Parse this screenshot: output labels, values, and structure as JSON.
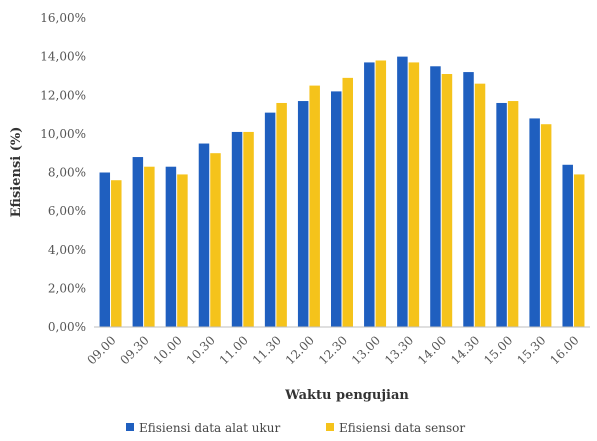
{
  "chart_data": {
    "type": "bar",
    "xlabel": "Waktu pengujian",
    "ylabel": "Efisiensi (%)",
    "ylim": [
      0,
      16
    ],
    "yticks": [
      "0,00%",
      "2,00%",
      "4,00%",
      "6,00%",
      "8,00%",
      "10,00%",
      "12,00%",
      "14,00%",
      "16,00%"
    ],
    "categories": [
      "09.00",
      "09.30",
      "10.00",
      "10.30",
      "11.00",
      "11.30",
      "12.00",
      "12.30",
      "13.00",
      "13.30",
      "14.00",
      "14.30",
      "15.00",
      "15.30",
      "16.00"
    ],
    "series": [
      {
        "name": "Efisiensi data alat ukur",
        "color": "#1f5fbf",
        "values": [
          8.0,
          8.8,
          8.3,
          9.5,
          10.1,
          11.1,
          11.7,
          12.2,
          13.7,
          14.0,
          13.5,
          13.2,
          11.6,
          10.8,
          8.4
        ]
      },
      {
        "name": "Efisiensi data sensor",
        "color": "#f5c31b",
        "values": [
          7.6,
          8.3,
          7.9,
          9.0,
          10.1,
          11.6,
          12.5,
          12.9,
          13.8,
          13.7,
          13.1,
          12.6,
          11.7,
          10.5,
          7.9
        ]
      }
    ],
    "grid": false,
    "legend": "bottom"
  }
}
